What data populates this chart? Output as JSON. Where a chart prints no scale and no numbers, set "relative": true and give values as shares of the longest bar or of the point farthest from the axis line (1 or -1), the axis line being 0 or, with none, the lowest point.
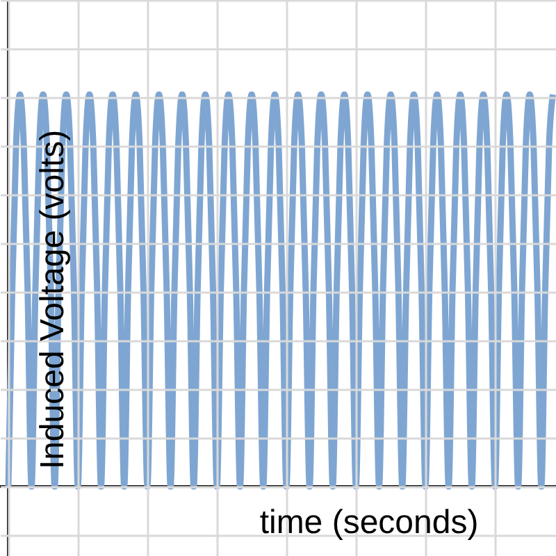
{
  "chart_data": {
    "type": "line",
    "xlabel": "time (seconds)",
    "ylabel": "Induced Voltage (volts)",
    "relative": true,
    "grid": true,
    "categories": [
      null,
      null,
      null,
      null,
      null,
      null,
      null,
      null,
      null,
      null,
      null,
      null,
      null,
      null,
      null,
      null,
      null,
      null,
      null,
      null,
      null,
      null,
      null,
      null,
      null,
      null,
      null,
      null,
      null,
      null,
      null,
      null,
      null,
      null,
      null,
      null,
      null,
      null,
      null,
      null,
      null,
      null,
      null,
      null,
      null,
      null,
      null,
      null,
      null,
      null,
      null,
      null,
      null,
      null,
      null,
      null,
      null,
      null,
      null,
      null,
      null,
      null,
      null,
      null,
      null,
      null,
      null,
      null,
      null,
      null,
      null,
      null,
      null,
      null,
      null,
      null,
      null,
      null,
      null,
      null,
      null,
      null,
      null,
      null,
      null,
      null,
      null,
      null,
      null,
      null,
      null,
      null,
      null,
      null,
      null,
      null,
      null,
      null,
      null,
      null,
      null,
      null,
      null,
      null,
      null,
      null,
      null,
      null,
      null,
      null,
      null,
      null,
      null,
      null,
      null,
      null,
      null,
      null,
      null,
      null,
      null,
      null,
      null,
      null,
      null,
      null,
      null,
      null,
      null,
      null,
      null,
      null,
      null,
      null,
      null,
      null,
      null,
      null,
      null,
      null,
      null,
      null
    ],
    "series": [
      {
        "color": "#7fa6d2",
        "values": [
          0,
          0.5,
          0.87,
          1,
          0.87,
          0.5,
          0,
          0.5,
          0.87,
          1,
          0.87,
          0.5,
          0,
          0.5,
          0.87,
          1,
          0.87,
          0.5,
          0,
          0.5,
          0.87,
          1,
          0.87,
          0.5,
          0,
          0.5,
          0.87,
          1,
          0.87,
          0.5,
          0,
          0.5,
          0.87,
          1,
          0.87,
          0.5,
          0,
          0.5,
          0.87,
          1,
          0.87,
          0.5,
          0,
          0.5,
          0.87,
          1,
          0.87,
          0.5,
          0,
          0.5,
          0.87,
          1,
          0.87,
          0.5,
          0,
          0.5,
          0.87,
          1,
          0.87,
          0.5,
          0,
          0.5,
          0.87,
          1,
          0.87,
          0.5,
          0,
          0.5,
          0.87,
          1,
          0.87,
          0.5,
          0,
          0.5,
          0.87,
          1,
          0.87,
          0.5,
          0,
          0.5,
          0.87,
          1,
          0.87,
          0.5,
          0,
          0.5,
          0.87,
          1,
          0.87,
          0.5,
          0,
          0.5,
          0.87,
          1,
          0.87,
          0.5,
          0,
          0.5,
          0.87,
          1,
          0.87,
          0.5,
          0,
          0.5,
          0.87,
          1,
          0.87,
          0.5,
          0,
          0.5,
          0.87,
          1,
          0.87,
          0.5,
          0,
          0.5,
          0.87,
          1,
          0.87,
          0.5,
          0,
          0.5,
          0.87,
          1,
          0.87,
          0.5,
          0,
          0.5,
          0.87,
          1,
          0.87,
          0.5,
          0,
          0.5,
          0.87,
          1,
          0.87,
          0.5,
          0,
          0.5,
          0.87,
          1
        ]
      }
    ]
  }
}
